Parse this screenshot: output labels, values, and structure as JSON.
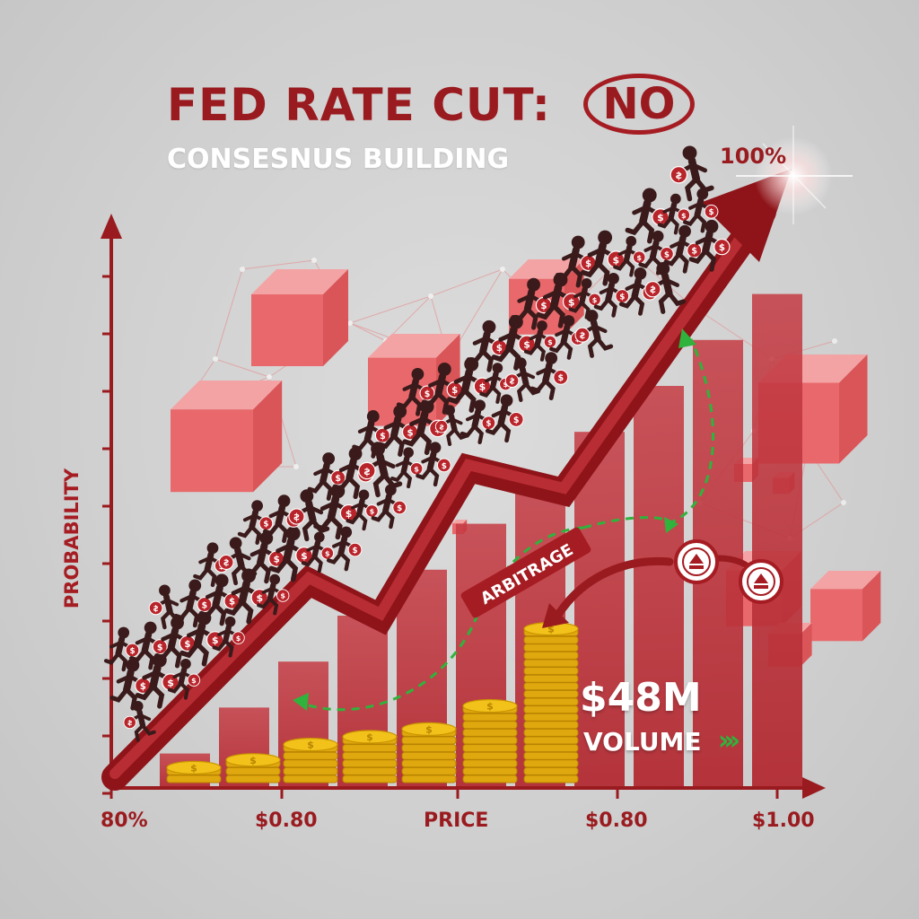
{
  "title": "FED RATE CUT:",
  "verdict": "NO",
  "subtitle": "CONSESNUS BUILDING",
  "top_label": "100%",
  "y_axis_label": "PROBABILITY",
  "x_axis_labels": [
    "80%",
    "$0.80",
    "PRICE",
    "$0.80",
    "$1.00"
  ],
  "arbitrage_label": "ARBITRAGE",
  "volume": {
    "value": "$48M",
    "label": "VOLUME",
    "chevrons": "›››"
  },
  "icons": [
    "running-trader-icon",
    "money-bag-icon",
    "coin-stack-icon",
    "up-arrow-badge-icon",
    "block-cube-icon"
  ],
  "colors": {
    "accent": "#9a1b1f",
    "bar": "#b8333a",
    "cube": "#e8686b",
    "coin": "#f2c21b",
    "arrow_green": "#2fb33c",
    "background": "#d2d2d2"
  },
  "bar_levels": [
    0.06,
    0.14,
    0.22,
    0.3,
    0.38,
    0.46,
    0.54,
    0.62,
    0.7,
    0.78,
    0.86
  ],
  "coin_stack_heights": [
    2,
    3,
    5,
    6,
    7,
    10,
    20
  ]
}
